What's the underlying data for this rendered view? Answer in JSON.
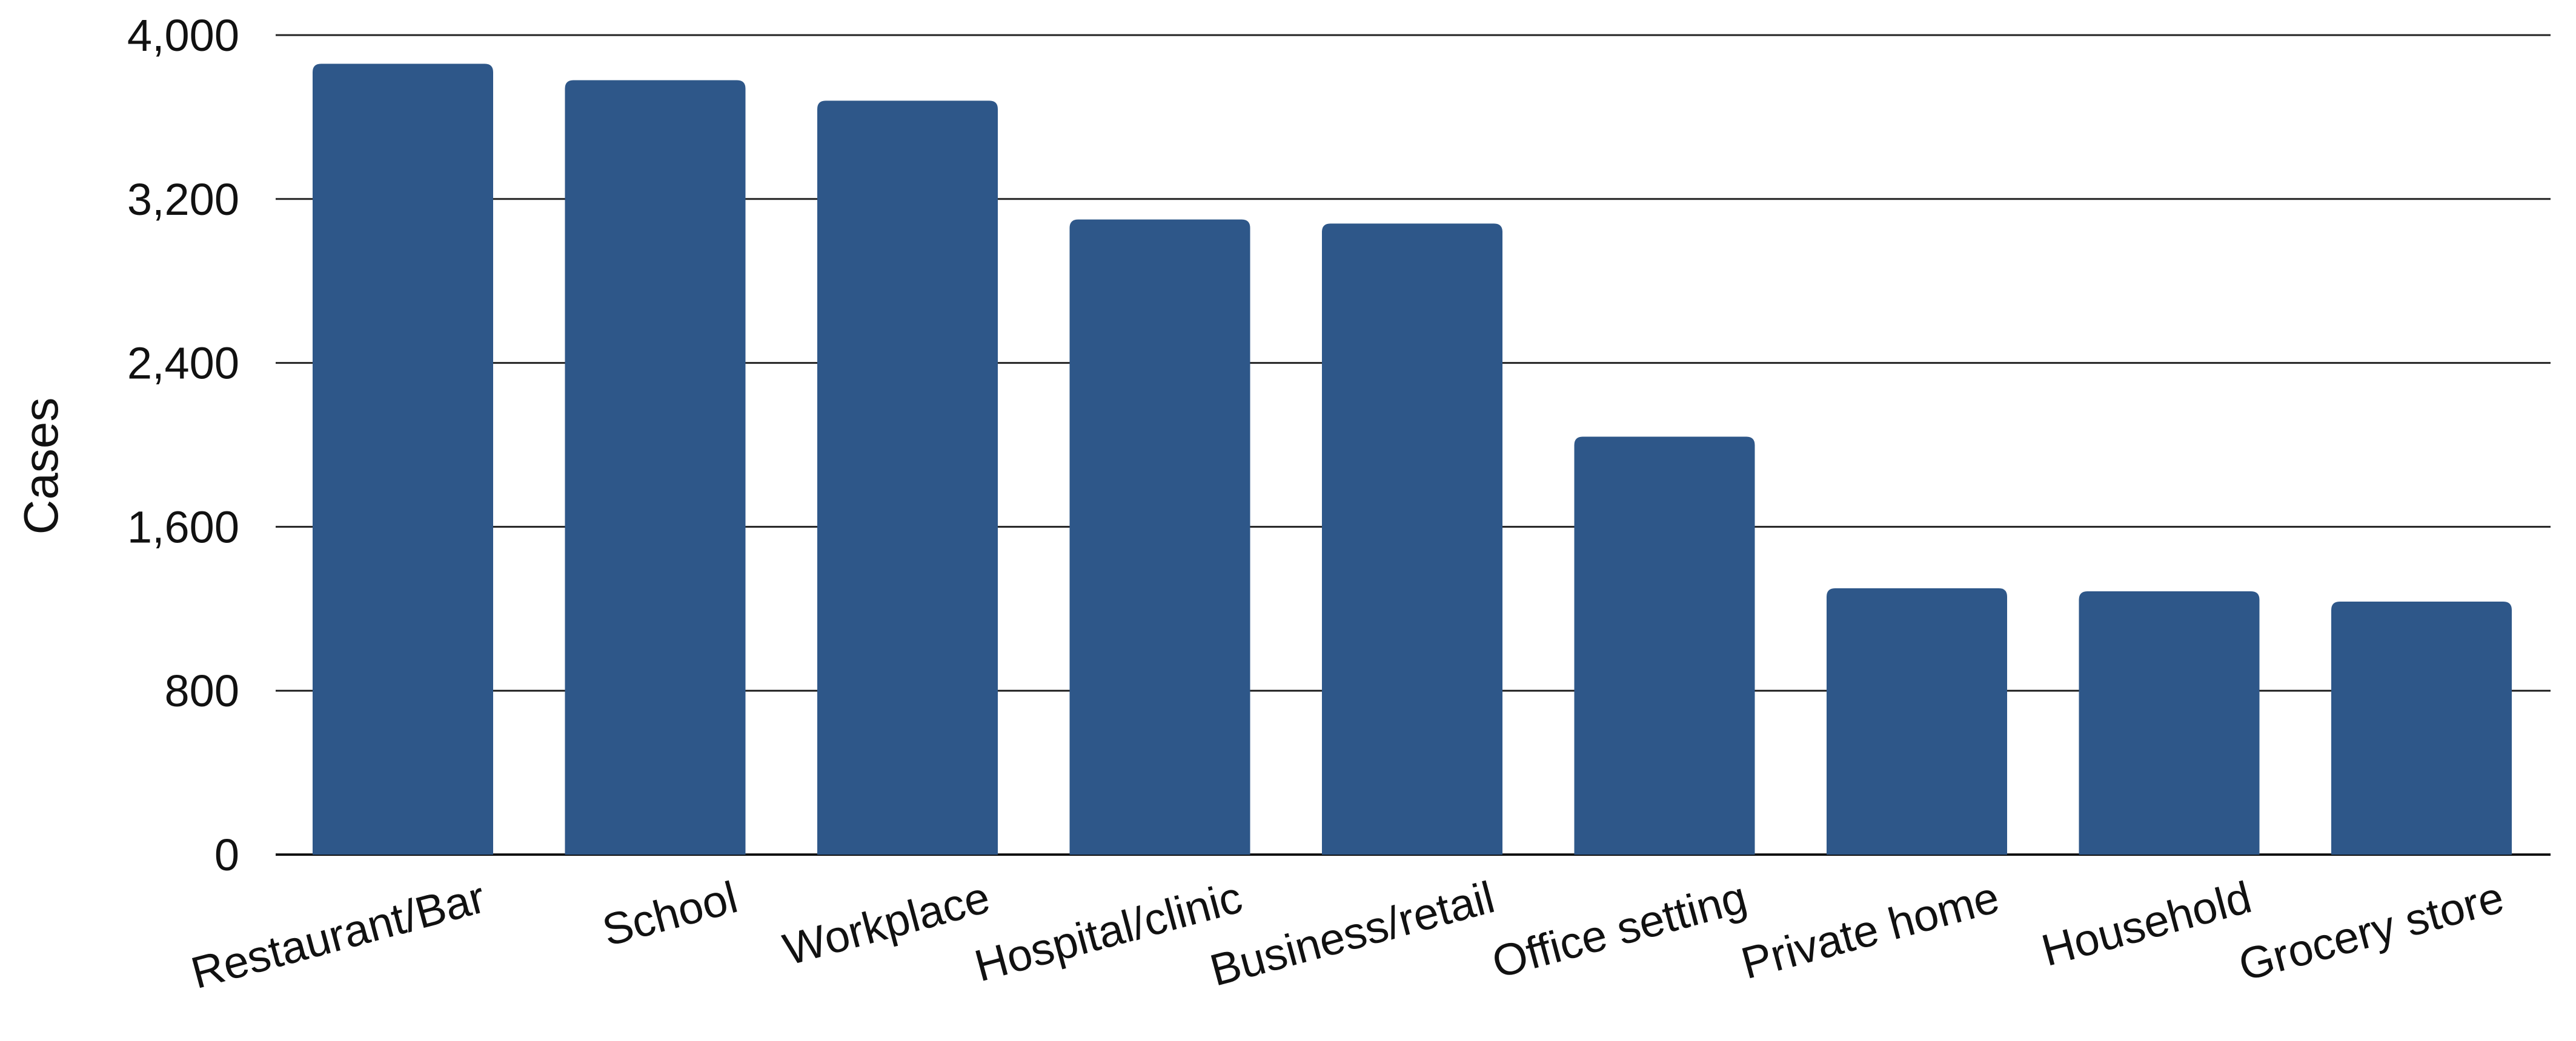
{
  "chart_data": {
    "type": "bar",
    "title": "",
    "xlabel": "",
    "ylabel": "Cases",
    "ylim": [
      0,
      4000
    ],
    "yticks": [
      0,
      800,
      1600,
      2400,
      3200,
      4000
    ],
    "ytick_labels": [
      "0",
      "800",
      "1,600",
      "2,400",
      "3,200",
      "4,000"
    ],
    "grid": true,
    "legend": "none",
    "bar_color": "#2e5789",
    "categories": [
      "Restaurant/Bar",
      "School",
      "Workplace",
      "Hospital/clinic",
      "Business/retail",
      "Office setting",
      "Private home",
      "Household",
      "Grocery store"
    ],
    "values": [
      3860,
      3780,
      3680,
      3100,
      3080,
      2040,
      1300,
      1285,
      1235
    ]
  }
}
